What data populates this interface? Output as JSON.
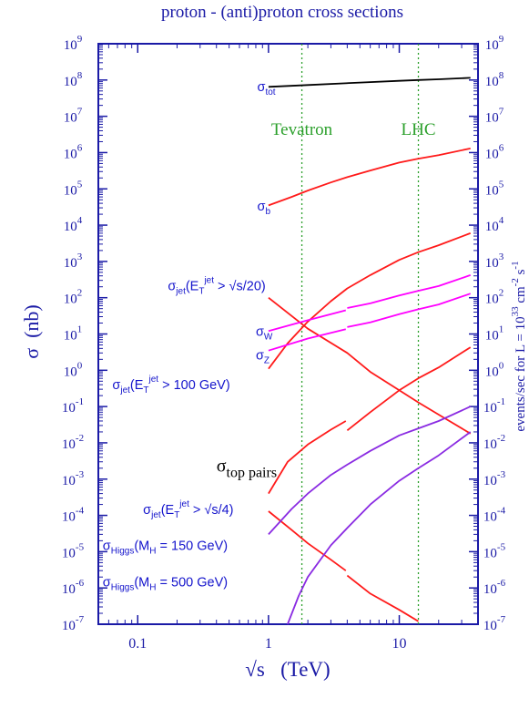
{
  "chart_data": {
    "type": "line",
    "title": "proton - (anti)proton cross sections",
    "xlabel": "√s   (TeV)",
    "ylabel": "σ  (nb)",
    "ylabel_right": "events/sec  for  L = 10^33 cm^-2 s^-1",
    "x_scale": "log",
    "y_scale": "log",
    "xlim": [
      0.05,
      40
    ],
    "ylim": [
      1e-07,
      1000000000.0
    ],
    "y_right_lim": [
      1e-07,
      1000000000.0
    ],
    "x_ticks": [
      {
        "value": 0.1,
        "label": "0.1"
      },
      {
        "value": 1,
        "label": "1"
      },
      {
        "value": 10,
        "label": "10"
      }
    ],
    "y_ticks": [
      {
        "exp": 9,
        "label": "10",
        "sup": "9"
      },
      {
        "exp": 8,
        "label": "10",
        "sup": "8"
      },
      {
        "exp": 7,
        "label": "10",
        "sup": "7"
      },
      {
        "exp": 6,
        "label": "10",
        "sup": "6"
      },
      {
        "exp": 5,
        "label": "10",
        "sup": "5"
      },
      {
        "exp": 4,
        "label": "10",
        "sup": "4"
      },
      {
        "exp": 3,
        "label": "10",
        "sup": "3"
      },
      {
        "exp": 2,
        "label": "10",
        "sup": "2"
      },
      {
        "exp": 1,
        "label": "10",
        "sup": "1"
      },
      {
        "exp": 0,
        "label": "10",
        "sup": "0"
      },
      {
        "exp": -1,
        "label": "10",
        "sup": "-1"
      },
      {
        "exp": -2,
        "label": "10",
        "sup": "-2"
      },
      {
        "exp": -3,
        "label": "10",
        "sup": "-3"
      },
      {
        "exp": -4,
        "label": "10",
        "sup": "-4"
      },
      {
        "exp": -5,
        "label": "10",
        "sup": "-5"
      },
      {
        "exp": -6,
        "label": "10",
        "sup": "-6"
      },
      {
        "exp": -7,
        "label": "10",
        "sup": "-7"
      }
    ],
    "vlines": [
      {
        "x": 1.8,
        "label": "Tevatron",
        "color": "#2ca02c"
      },
      {
        "x": 14,
        "label": "LHC",
        "color": "#2ca02c"
      }
    ],
    "series": [
      {
        "name": "σtot",
        "color": "#000000",
        "segments": [
          {
            "x": [
              1,
              2,
              5,
              10,
              14,
              20,
              35
            ],
            "y": [
              65000000.0,
              73000000.0,
              85000000.0,
              95000000.0,
              100000000.0,
              105000000.0,
              115000000.0
            ]
          }
        ]
      },
      {
        "name": "σb",
        "color": "#ff1a1a",
        "segments": [
          {
            "x": [
              1,
              1.5,
              2,
              3,
              4,
              6,
              10,
              14,
              20,
              35
            ],
            "y": [
              35000.0,
              60000.0,
              90000.0,
              150000.0,
              210000.0,
              320000.0,
              530000.0,
              680000.0,
              850000.0,
              1300000.0
            ]
          }
        ]
      },
      {
        "name": "σjet(ET jet > √s/20)",
        "color": "#ff1a1a",
        "segments": [
          {
            "x": [
              1,
              2,
              4,
              6,
              10,
              14,
              20,
              35
            ],
            "y": [
              100,
              14,
              3,
              0.9,
              0.28,
              0.13,
              0.06,
              0.018
            ]
          }
        ]
      },
      {
        "name": "σjet(ET jet > 100 GeV)",
        "color": "#ff1a1a",
        "segments": [
          {
            "x": [
              1,
              1.4,
              2,
              3,
              4,
              6,
              10,
              14,
              20,
              35
            ],
            "y": [
              1.1,
              5.5,
              22,
              80,
              180,
              420,
              1100,
              1800,
              2800,
              6000
            ]
          }
        ]
      },
      {
        "name": "σW",
        "color": "#ff00ff",
        "segments": [
          {
            "x": [
              1,
              2,
              3.9
            ],
            "y": [
              12,
              24,
              45
            ]
          },
          {
            "x": [
              4,
              6,
              10,
              14,
              20,
              35
            ],
            "y": [
              52,
              70,
              115,
              155,
              210,
              420
            ]
          }
        ]
      },
      {
        "name": "σZ",
        "color": "#ff00ff",
        "segments": [
          {
            "x": [
              1,
              2,
              3.9
            ],
            "y": [
              3.5,
              7.5,
              13.5
            ]
          },
          {
            "x": [
              4,
              6,
              10,
              14,
              20,
              35
            ],
            "y": [
              15.5,
              21,
              35,
              48,
              65,
              130
            ]
          }
        ]
      },
      {
        "name": "σtop pairs",
        "color": "#ff1a1a",
        "segments": [
          {
            "x": [
              1,
              1.4,
              2,
              3,
              3.9
            ],
            "y": [
              0.0004,
              0.003,
              0.009,
              0.023,
              0.04
            ]
          },
          {
            "x": [
              4,
              6,
              10,
              14,
              20,
              35
            ],
            "y": [
              0.022,
              0.07,
              0.28,
              0.6,
              1.2,
              4.3
            ]
          }
        ]
      },
      {
        "name": "σjet(ET jet > √s/4)",
        "color": "#ff1a1a",
        "segments": [
          {
            "x": [
              1,
              1.5,
              2,
              3,
              3.9
            ],
            "y": [
              0.00013,
              4e-05,
              1.7e-05,
              6e-06,
              3e-06
            ]
          },
          {
            "x": [
              4,
              6,
              10,
              14
            ],
            "y": [
              2.2e-06,
              7e-07,
              2.5e-07,
              1.2e-07
            ]
          }
        ]
      },
      {
        "name": "σHiggs(MH = 150 GeV)",
        "color": "#8a2be2",
        "segments": [
          {
            "x": [
              1,
              1.5,
              2,
              3,
              4,
              6,
              10,
              14,
              20,
              35
            ],
            "y": [
              3e-05,
              0.00015,
              0.0004,
              0.0013,
              0.0025,
              0.006,
              0.016,
              0.025,
              0.04,
              0.1
            ]
          }
        ]
      },
      {
        "name": "σHiggs(MH = 500 GeV)",
        "color": "#8a2be2",
        "segments": [
          {
            "x": [
              1.4,
              1.7,
              2,
              3,
              4,
              6,
              10,
              14,
              20,
              35
            ],
            "y": [
              1e-07,
              6e-07,
              2e-06,
              1.5e-05,
              4.5e-05,
              0.0002,
              0.0009,
              0.002,
              0.0045,
              0.02
            ]
          }
        ]
      }
    ],
    "labels": [
      {
        "x": 0.82,
        "y": 50000000.0,
        "main": "σ",
        "sub": "tot",
        "sup": "",
        "rest": "",
        "kind": "blue"
      },
      {
        "x": 0.82,
        "y": 25000.0,
        "main": "σ",
        "sub": "b",
        "sup": "",
        "rest": "",
        "kind": "blue"
      },
      {
        "x": 0.17,
        "y": 160,
        "main": "σ",
        "sub": "jet",
        "pre": "(E",
        "pre_sub": "T",
        "sup": "jet",
        "rest": " > √s/20)",
        "kind": "blue"
      },
      {
        "x": 0.8,
        "y": 9,
        "main": "σ",
        "sub": "W",
        "sup": "",
        "rest": "",
        "kind": "blue"
      },
      {
        "x": 0.8,
        "y": 2,
        "main": "σ",
        "sub": "Z",
        "sup": "",
        "rest": "",
        "kind": "blue"
      },
      {
        "x": 0.064,
        "y": 0.3,
        "main": "σ",
        "sub": "jet",
        "pre": "(E",
        "pre_sub": "T",
        "sup": "jet",
        "rest": " > 100 GeV)",
        "kind": "blue"
      },
      {
        "x": 0.4,
        "y": 0.0016,
        "main": "σ",
        "sub": "top pairs",
        "sup": "",
        "rest": "",
        "kind": "black"
      },
      {
        "x": 0.11,
        "y": 0.00011,
        "main": "σ",
        "sub": "jet",
        "pre": "(E",
        "pre_sub": "T",
        "sup": "jet",
        "rest": " > √s/4)",
        "kind": "blue"
      },
      {
        "x": 0.054,
        "y": 1.1e-05,
        "main": "σ",
        "sub": "Higgs",
        "sup": "",
        "rest": "(M",
        "rest_sub": "H",
        "rest2": " = 150 GeV)",
        "kind": "blue"
      },
      {
        "x": 0.054,
        "y": 1.1e-06,
        "main": "σ",
        "sub": "Higgs",
        "sup": "",
        "rest": "(M",
        "rest_sub": "H",
        "rest2": " = 500 GeV)",
        "kind": "blue"
      }
    ],
    "grid": false,
    "legend": "none",
    "colors": {
      "axis": "#1a1aa6",
      "label_blue": "#1414cc",
      "title": "#1a1aa6"
    }
  }
}
